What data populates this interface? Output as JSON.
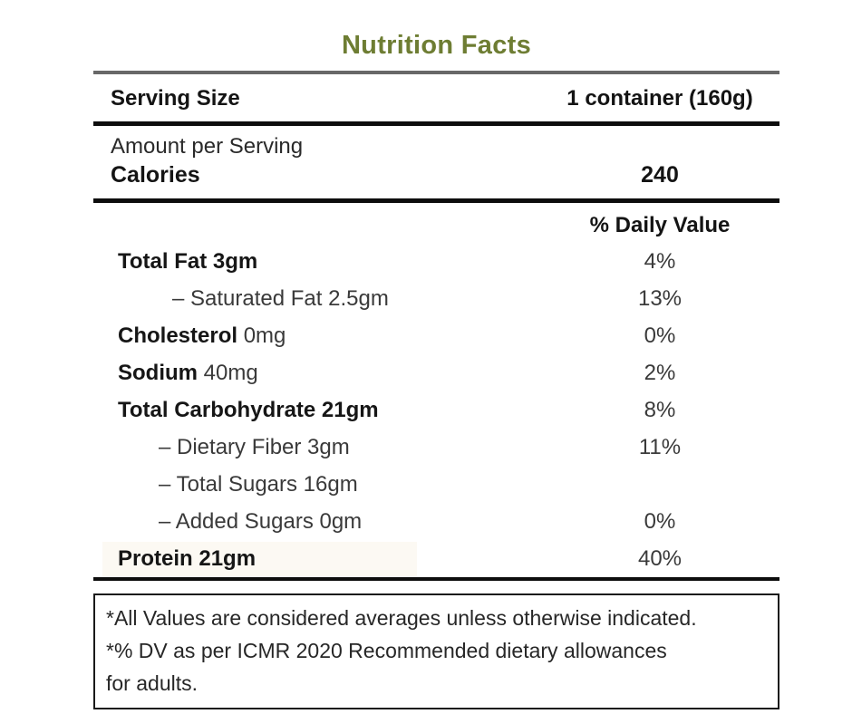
{
  "title": "Nutrition Facts",
  "colors": {
    "title_green": "#6e7d33",
    "gray_rule": "#686868",
    "text_dark": "#141414",
    "text_regular": "#3a3a3a",
    "protein_highlight": "#fcf9f3"
  },
  "serving": {
    "label": "Serving Size",
    "value": "1 container (160g)"
  },
  "amount_per_serving": "Amount per Serving",
  "calories": {
    "label": "Calories",
    "value": "240"
  },
  "daily_value_header": "% Daily Value",
  "rows": [
    {
      "prefix": "",
      "bold": "Total Fat 3gm",
      "regular": "",
      "indent": 0,
      "dv": "4%",
      "highlight": false
    },
    {
      "prefix": "– ",
      "bold": "",
      "regular": "Saturated Fat 2.5gm",
      "indent": 2,
      "dv": "13%",
      "highlight": false
    },
    {
      "prefix": "",
      "bold": "Cholesterol",
      "regular": " 0mg",
      "indent": 0,
      "dv": "0%",
      "highlight": false
    },
    {
      "prefix": "",
      "bold": "Sodium",
      "regular": " 40mg",
      "indent": 0,
      "dv": "2%",
      "highlight": false
    },
    {
      "prefix": "",
      "bold": "Total Carbohydrate 21gm",
      "regular": "",
      "indent": 0,
      "dv": "8%",
      "highlight": false
    },
    {
      "prefix": "– ",
      "bold": "",
      "regular": "Dietary Fiber 3gm",
      "indent": 1,
      "dv": "11%",
      "highlight": false
    },
    {
      "prefix": "– ",
      "bold": "",
      "regular": "Total Sugars 16gm",
      "indent": 1,
      "dv": "",
      "highlight": false
    },
    {
      "prefix": "– ",
      "bold": "",
      "regular": "Added Sugars 0gm",
      "indent": 1,
      "dv": "0%",
      "highlight": false
    },
    {
      "prefix": "",
      "bold": "Protein 21gm",
      "regular": "",
      "indent": 0,
      "dv": "40%",
      "highlight": true
    }
  ],
  "footnote": {
    "lines": [
      "*All Values are considered averages unless otherwise indicated.",
      "*% DV as per ICMR 2020 Recommended dietary allowances",
      "for adults."
    ]
  }
}
